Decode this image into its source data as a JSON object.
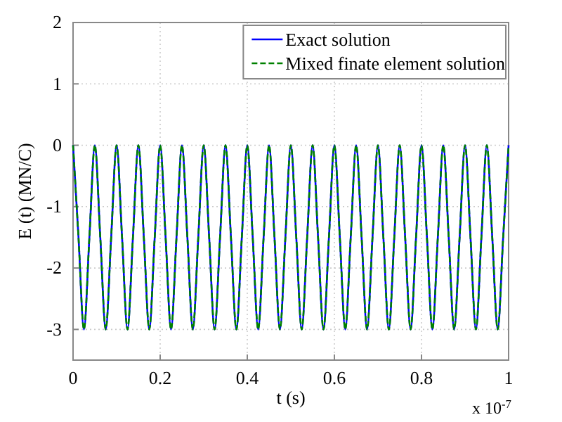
{
  "chart_data": {
    "type": "line",
    "xlabel": "t  (s)",
    "ylabel": "E (t)  (MN/C)",
    "x": [
      0,
      0.0125,
      0.025,
      0.0375,
      0.05,
      0.0625,
      0.075,
      0.0875,
      0.1,
      0.1125,
      0.125,
      0.1375,
      0.15,
      0.1625,
      0.175,
      0.1875,
      0.2,
      0.2125,
      0.225,
      0.2375,
      0.25,
      0.2625,
      0.275,
      0.2875,
      0.3,
      0.3125,
      0.325,
      0.3375,
      0.35,
      0.3625,
      0.375,
      0.3875,
      0.4,
      0.4125,
      0.425,
      0.4375,
      0.45,
      0.4625,
      0.475,
      0.4875,
      0.5,
      0.5125,
      0.525,
      0.5375,
      0.55,
      0.5625,
      0.575,
      0.5875,
      0.6,
      0.6125,
      0.625,
      0.6375,
      0.65,
      0.6625,
      0.675,
      0.6875,
      0.7,
      0.7125,
      0.725,
      0.7375,
      0.75,
      0.7625,
      0.775,
      0.7875,
      0.8,
      0.8125,
      0.825,
      0.8375,
      0.85,
      0.8625,
      0.875,
      0.8875,
      0.9,
      0.9125,
      0.925,
      0.9375,
      0.95,
      0.9625,
      0.975,
      0.9875,
      1
    ],
    "series": [
      {
        "name": "Exact solution",
        "color": "#0000ff",
        "line_style": "solid",
        "values": [
          0,
          -1.5,
          -3,
          -1.5,
          0,
          -1.5,
          -3,
          -1.5,
          0,
          -1.5,
          -3,
          -1.5,
          0,
          -1.5,
          -3,
          -1.5,
          0,
          -1.5,
          -3,
          -1.5,
          0,
          -1.5,
          -3,
          -1.5,
          0,
          -1.5,
          -3,
          -1.5,
          0,
          -1.5,
          -3,
          -1.5,
          0,
          -1.5,
          -3,
          -1.5,
          0,
          -1.5,
          -3,
          -1.5,
          0,
          -1.5,
          -3,
          -1.5,
          0,
          -1.5,
          -3,
          -1.5,
          0,
          -1.5,
          -3,
          -1.5,
          0,
          -1.5,
          -3,
          -1.5,
          0,
          -1.5,
          -3,
          -1.5,
          0,
          -1.5,
          -3,
          -1.5,
          0,
          -1.5,
          -3,
          -1.5,
          0,
          -1.5,
          -3,
          -1.5,
          0,
          -1.5,
          -3,
          -1.5,
          0,
          -1.5,
          -3,
          -1.5,
          0
        ]
      },
      {
        "name": "Mixed finate element solution",
        "color": "#008000",
        "line_style": "dashed",
        "values": [
          0,
          -1.5,
          -3,
          -1.5,
          0,
          -1.5,
          -3,
          -1.5,
          0,
          -1.5,
          -3,
          -1.5,
          0,
          -1.5,
          -3,
          -1.5,
          0,
          -1.5,
          -3,
          -1.5,
          0,
          -1.5,
          -3,
          -1.5,
          0,
          -1.5,
          -3,
          -1.5,
          0,
          -1.5,
          -3,
          -1.5,
          0,
          -1.5,
          -3,
          -1.5,
          0,
          -1.5,
          -3,
          -1.5,
          0,
          -1.5,
          -3,
          -1.5,
          0,
          -1.5,
          -3,
          -1.5,
          0,
          -1.5,
          -3,
          -1.5,
          0,
          -1.5,
          -3,
          -1.5,
          0,
          -1.5,
          -3,
          -1.5,
          0,
          -1.5,
          -3,
          -1.5,
          0,
          -1.5,
          -3,
          -1.5,
          0,
          -1.5,
          -3,
          -1.5,
          0,
          -1.5,
          -3,
          -1.5,
          0,
          -1.5,
          -3,
          -1.5,
          0
        ]
      }
    ],
    "xlim": [
      0,
      1
    ],
    "xticks": [
      0,
      0.2,
      0.4,
      0.6,
      0.8,
      1
    ],
    "ylim": [
      -3.5,
      2
    ],
    "yticks": [
      -3,
      -2,
      -1,
      0,
      1,
      2
    ],
    "grid": true,
    "legend": "top right",
    "marker": "none",
    "annotations": [
      "x 10$^{-7}$"
    ]
  }
}
